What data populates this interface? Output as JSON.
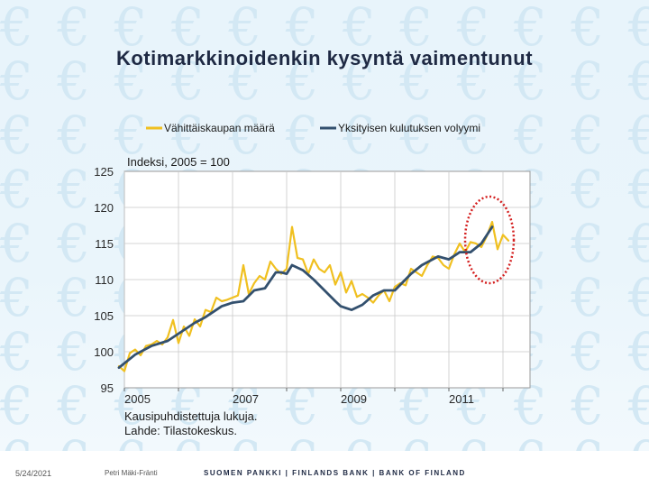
{
  "slide": {
    "title": "Kotimarkkinoidenkin kysyntä vaimentunut",
    "footer": {
      "date": "5/24/2021",
      "author": "Petri Mäki-Fränti",
      "bank": "SUOMEN PANKKI | FINLANDS BANK | BANK OF FINLAND"
    },
    "background_glyph": "€",
    "colors": {
      "background": "#e8f4fb",
      "glyph": "#d3e8f4",
      "title": "#1f2a44"
    }
  },
  "chart_data": {
    "type": "line",
    "index_label": "Indeksi, 2005 = 100",
    "ylim": [
      95,
      125
    ],
    "yticks": [
      95,
      100,
      105,
      110,
      115,
      120,
      125
    ],
    "xlim": [
      2005,
      2012.5
    ],
    "xticks": [
      {
        "value": 2005.0,
        "label": "2005"
      },
      {
        "value": 2007.0,
        "label": "2007"
      },
      {
        "value": 2009.0,
        "label": "2009"
      },
      {
        "value": 2011.0,
        "label": "2011"
      }
    ],
    "note_lines": [
      "Kausipuhdistettuja lukuja.",
      "Lahde: Tilastokeskus."
    ],
    "grid": true,
    "legend_position": "top",
    "highlight": {
      "shape": "ellipse",
      "center_x": 2011.75,
      "center_y": 115.5,
      "rx": 0.45,
      "ry": 6,
      "color": "#d42020"
    },
    "series": [
      {
        "name": "Vähittäiskaupan määrä",
        "color": "#f0c020",
        "x": [
          2004.9,
          2005.0,
          2005.1,
          2005.2,
          2005.3,
          2005.4,
          2005.5,
          2005.6,
          2005.7,
          2005.8,
          2005.9,
          2006.0,
          2006.1,
          2006.2,
          2006.3,
          2006.4,
          2006.5,
          2006.6,
          2006.7,
          2006.8,
          2006.9,
          2007.0,
          2007.1,
          2007.2,
          2007.3,
          2007.4,
          2007.5,
          2007.6,
          2007.7,
          2007.8,
          2007.9,
          2008.0,
          2008.1,
          2008.2,
          2008.3,
          2008.4,
          2008.5,
          2008.6,
          2008.7,
          2008.8,
          2008.9,
          2009.0,
          2009.1,
          2009.2,
          2009.3,
          2009.4,
          2009.5,
          2009.6,
          2009.7,
          2009.8,
          2009.9,
          2010.0,
          2010.1,
          2010.2,
          2010.3,
          2010.4,
          2010.5,
          2010.6,
          2010.7,
          2010.8,
          2010.9,
          2011.0,
          2011.1,
          2011.2,
          2011.3,
          2011.4,
          2011.5,
          2011.6,
          2011.7,
          2011.8,
          2011.9,
          2012.0,
          2012.1
        ],
        "values": [
          98,
          97.3,
          99.8,
          100.3,
          99.5,
          100.8,
          101,
          101.5,
          101,
          102,
          104.4,
          101.2,
          103.5,
          102.2,
          104.5,
          103.5,
          105.8,
          105.5,
          107.5,
          107,
          107.2,
          107.5,
          107.8,
          112,
          108,
          109.5,
          110.5,
          110,
          112.5,
          111.5,
          110.8,
          111.5,
          117.3,
          113,
          112.8,
          110.8,
          112.8,
          111.5,
          111,
          112,
          109.3,
          111,
          108.2,
          109.8,
          107.6,
          108,
          107.5,
          106.8,
          107.8,
          108.5,
          107,
          109,
          109.5,
          109.2,
          111.5,
          111,
          110.5,
          112,
          113.2,
          113,
          112,
          111.5,
          113.5,
          115,
          113.8,
          115.2,
          115,
          114.5,
          116,
          118,
          114.2,
          116.2,
          115.4
        ]
      },
      {
        "name": "Yksityisen kulutuksen volyymi",
        "color": "#33506e",
        "x": [
          2004.9,
          2005.2,
          2005.5,
          2005.8,
          2006.0,
          2006.3,
          2006.5,
          2006.8,
          2007.0,
          2007.2,
          2007.4,
          2007.6,
          2007.8,
          2007.9,
          2008.0,
          2008.1,
          2008.3,
          2008.5,
          2008.7,
          2008.9,
          2009.0,
          2009.2,
          2009.4,
          2009.6,
          2009.8,
          2010.0,
          2010.3,
          2010.5,
          2010.8,
          2011.0,
          2011.2,
          2011.4,
          2011.6,
          2011.8
        ],
        "values": [
          97.8,
          99.6,
          100.8,
          101.5,
          102.5,
          104,
          104.8,
          106.3,
          106.8,
          107,
          108.5,
          108.8,
          111,
          111,
          110.8,
          112,
          111.3,
          110,
          108.5,
          107,
          106.3,
          105.8,
          106.5,
          107.8,
          108.5,
          108.5,
          110.8,
          112,
          113.2,
          112.8,
          113.8,
          113.8,
          115,
          117.3
        ]
      }
    ]
  }
}
